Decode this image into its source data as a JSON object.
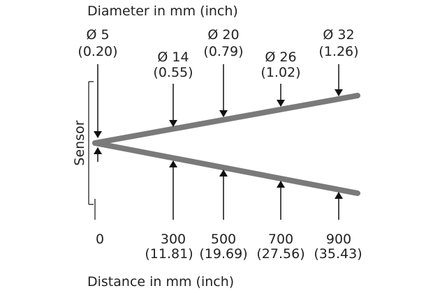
{
  "title": "Diameter in mm (inch)",
  "side_label": "Sensor",
  "x_axis_label": "Distance in mm (inch)",
  "diameters": [
    {
      "mm": "Ø 5",
      "inch": "(0.20)"
    },
    {
      "mm": "Ø 14",
      "inch": "(0.55)"
    },
    {
      "mm": "Ø 20",
      "inch": "(0.79)"
    },
    {
      "mm": "Ø 26",
      "inch": "(1.02)"
    },
    {
      "mm": "Ø 32",
      "inch": "(1.26)"
    }
  ],
  "distances": [
    {
      "mm": "0"
    },
    {
      "mm": "300",
      "inch": "(11.81)"
    },
    {
      "mm": "500",
      "inch": "(19.69)"
    },
    {
      "mm": "700",
      "inch": "(27.56)"
    },
    {
      "mm": "900",
      "inch": "(35.43)"
    }
  ]
}
